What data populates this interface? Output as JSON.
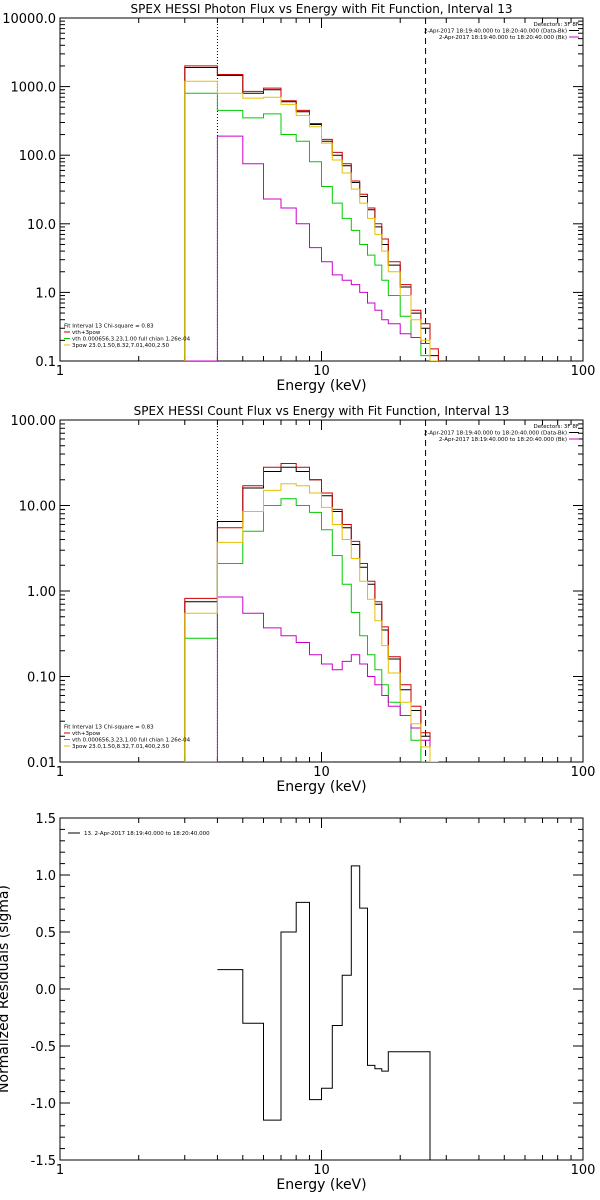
{
  "chart_data": [
    {
      "type": "line",
      "title": "SPEX HESSI Photon Flux vs Energy with Fit Function, Interval 13",
      "xlabel": "Energy (keV)",
      "ylabel": "",
      "xscale": "log",
      "yscale": "log",
      "xlim": [
        1,
        100
      ],
      "ylim": [
        0.1,
        10000
      ],
      "xticks": [
        {
          "v": 1,
          "label": "1"
        },
        {
          "v": 10,
          "label": "10"
        },
        {
          "v": 100,
          "label": "100"
        }
      ],
      "yticks": [
        {
          "v": 0.1,
          "label": "0.1"
        },
        {
          "v": 1,
          "label": "1.0"
        },
        {
          "v": 10,
          "label": "10.0"
        },
        {
          "v": 100,
          "label": "100.0"
        },
        {
          "v": 1000,
          "label": "1000.0"
        },
        {
          "v": 10000,
          "label": "10000.0"
        }
      ],
      "vlines": [
        {
          "x": 4.0,
          "style": "dotted",
          "color": "#000000"
        },
        {
          "x": 25.0,
          "style": "dashed",
          "color": "#000000"
        }
      ],
      "edges": [
        3.0,
        4.0,
        5.0,
        6.0,
        7.0,
        8.0,
        9.0,
        10.0,
        11.0,
        12.0,
        13.0,
        14.0,
        15.0,
        16.0,
        17.0,
        18.0,
        20.0,
        22.0,
        24.0,
        26.0,
        28.0
      ],
      "series": [
        {
          "name": "",
          "color": "#000000",
          "values": [
            1900,
            1450,
            800,
            900,
            600,
            430,
            280,
            160,
            100,
            70,
            40,
            25,
            16,
            9,
            5,
            2.5,
            1.2,
            0.5,
            0.3,
            0.12
          ]
        },
        {
          "name": "",
          "color": "#cc0000",
          "values": [
            2000,
            1500,
            850,
            950,
            620,
            450,
            290,
            170,
            110,
            75,
            42,
            27,
            17,
            10,
            6,
            2.8,
            1.3,
            0.55,
            0.35,
            0.15
          ]
        },
        {
          "name": "",
          "color": "#00cc00",
          "values": [
            800,
            450,
            350,
            400,
            200,
            160,
            80,
            35,
            20,
            12,
            8,
            5,
            3.5,
            2.5,
            1.5,
            0.9,
            0.45,
            0.22,
            0.12,
            0.05
          ]
        },
        {
          "name": "",
          "color": "#cc00cc",
          "values": [
            0.05,
            190,
            75,
            23,
            17,
            10,
            4.5,
            2.8,
            1.8,
            1.5,
            1.3,
            1.0,
            0.7,
            0.55,
            0.4,
            0.35,
            0.25,
            0.22,
            0.18,
            0.05
          ]
        },
        {
          "name": "",
          "color": "#e6c000",
          "values": [
            1200,
            800,
            680,
            700,
            550,
            380,
            260,
            150,
            85,
            55,
            32,
            20,
            12,
            7,
            4,
            2,
            0.9,
            0.4,
            0.2,
            0.08
          ]
        }
      ],
      "legend": {
        "placement": "top-right",
        "lines": [
          {
            "text": "Detectors: 3F 8F",
            "line": false,
            "color": "#000000"
          },
          {
            "text": "2-Apr-2017 18:19:40.000 to 18:20:40.000 (Data-Bk)",
            "line": true,
            "color": "#000000"
          },
          {
            "text": "2-Apr-2017 18:19:40.000 to 18:20:40.000 (Bk)",
            "line": true,
            "color": "#cc00cc"
          }
        ]
      },
      "fit_legend": {
        "placement": "bottom-left",
        "lines": [
          {
            "text": "Fit Interval 13   Chi-square = 0.83",
            "line": false,
            "color": "#000000"
          },
          {
            "text": "vth+3pow",
            "line": true,
            "color": "#cc0000"
          },
          {
            "text": "vth 0.000656,3.23,1.00  full chian 1.26e-04",
            "line": true,
            "color": "#00cc00"
          },
          {
            "text": "3pow 23.0,1.50,8.32,7.01,400,2.50",
            "line": true,
            "color": "#e6c000"
          }
        ]
      }
    },
    {
      "type": "line",
      "title": "SPEX HESSI Count Flux vs Energy with Fit Function, Interval 13",
      "xlabel": "Energy (keV)",
      "ylabel": "",
      "xscale": "log",
      "yscale": "log",
      "xlim": [
        1,
        100
      ],
      "ylim": [
        0.01,
        100
      ],
      "xticks": [
        {
          "v": 1,
          "label": "1"
        },
        {
          "v": 10,
          "label": "10"
        },
        {
          "v": 100,
          "label": "100"
        }
      ],
      "yticks": [
        {
          "v": 0.01,
          "label": "0.01"
        },
        {
          "v": 0.1,
          "label": "0.10"
        },
        {
          "v": 1,
          "label": "1.00"
        },
        {
          "v": 10,
          "label": "10.00"
        },
        {
          "v": 100,
          "label": "100.00"
        }
      ],
      "vlines": [
        {
          "x": 4.0,
          "style": "dotted",
          "color": "#000000"
        },
        {
          "x": 25.0,
          "style": "dashed",
          "color": "#000000"
        }
      ],
      "edges": [
        3.0,
        4.0,
        5.0,
        6.0,
        7.0,
        8.0,
        9.0,
        10.0,
        11.0,
        12.0,
        13.0,
        14.0,
        15.0,
        16.0,
        17.0,
        18.0,
        20.0,
        22.0,
        24.0,
        26.0,
        28.0
      ],
      "series": [
        {
          "name": "",
          "color": "#000000",
          "values": [
            0.75,
            6.5,
            16,
            25,
            28,
            25,
            20,
            13,
            8.5,
            5.5,
            3.5,
            1.9,
            1.2,
            0.7,
            0.35,
            0.16,
            0.07,
            0.04,
            0.02,
            0.005
          ]
        },
        {
          "name": "",
          "color": "#cc0000",
          "values": [
            0.82,
            5.5,
            17,
            28,
            31,
            28,
            20,
            14,
            9,
            6,
            3.8,
            2.1,
            1.3,
            0.75,
            0.38,
            0.17,
            0.08,
            0.045,
            0.022,
            0.006
          ]
        },
        {
          "name": "",
          "color": "#00cc00",
          "values": [
            0.28,
            2.1,
            5,
            10,
            12,
            10,
            8.3,
            5.2,
            2.6,
            1.2,
            0.56,
            0.3,
            0.18,
            0.12,
            0.08,
            0.05,
            0.035,
            0.018,
            0.01,
            0.004
          ]
        },
        {
          "name": "",
          "color": "#cc00cc",
          "values": [
            0.005,
            0.85,
            0.55,
            0.37,
            0.3,
            0.25,
            0.18,
            0.14,
            0.12,
            0.15,
            0.18,
            0.14,
            0.1,
            0.08,
            0.06,
            0.045,
            0.035,
            0.025,
            0.018,
            0.005
          ]
        },
        {
          "name": "",
          "color": "#e6c000",
          "values": [
            0.55,
            3.7,
            8.5,
            15,
            18,
            17,
            14,
            9.5,
            6,
            4,
            2.4,
            1.3,
            0.8,
            0.45,
            0.23,
            0.11,
            0.05,
            0.028,
            0.015,
            0.004
          ]
        }
      ],
      "legend": {
        "placement": "top-right",
        "lines": [
          {
            "text": "Detectors: 3F 8F",
            "line": false,
            "color": "#000000"
          },
          {
            "text": "2-Apr-2017 18:19:40.000 to 18:20:40.000 (Data-Bk)",
            "line": true,
            "color": "#000000"
          },
          {
            "text": "2-Apr-2017 18:19:40.000 to 18:20:40.000 (Bk)",
            "line": true,
            "color": "#cc00cc"
          }
        ]
      },
      "fit_legend": {
        "placement": "bottom-left",
        "lines": [
          {
            "text": "Fit Interval 13   Chi-square = 0.83",
            "line": false,
            "color": "#000000"
          },
          {
            "text": "vth+3pow",
            "line": true,
            "color": "#cc0000"
          },
          {
            "text": "vth 0.000656,3.23,1.00  full chian 1.26e-04",
            "line": true,
            "color": "#00cc00"
          },
          {
            "text": "3pow 23.0,1.50,8.32,7.01,400,2.50",
            "line": true,
            "color": "#e6c000"
          }
        ]
      }
    },
    {
      "type": "line",
      "title": "",
      "xlabel": "Energy (keV)",
      "ylabel": "Normalized Residuals (sigma)",
      "xscale": "log",
      "yscale": "linear",
      "xlim": [
        1,
        100
      ],
      "ylim": [
        -1.5,
        1.5
      ],
      "xticks": [
        {
          "v": 1,
          "label": "1"
        },
        {
          "v": 10,
          "label": "10"
        },
        {
          "v": 100,
          "label": "100"
        }
      ],
      "yticks": [
        {
          "v": -1.5,
          "label": "-1.5"
        },
        {
          "v": -1.0,
          "label": "-1.0"
        },
        {
          "v": -0.5,
          "label": "-0.5"
        },
        {
          "v": 0.0,
          "label": "0.0"
        },
        {
          "v": 0.5,
          "label": "0.5"
        },
        {
          "v": 1.0,
          "label": "1.0"
        },
        {
          "v": 1.5,
          "label": "1.5"
        }
      ],
      "vlines": [],
      "edges": [
        4.0,
        5.0,
        6.0,
        7.0,
        8.0,
        9.0,
        10.0,
        11.0,
        12.0,
        13.0,
        14.0,
        15.0,
        16.0,
        17.0,
        18.0,
        20.0,
        22.0,
        24.0,
        26.0
      ],
      "series": [
        {
          "name": "",
          "color": "#000000",
          "values": [
            0.17,
            -0.3,
            -1.15,
            0.5,
            0.76,
            -0.97,
            -0.87,
            -0.32,
            0.12,
            1.08,
            0.71,
            -0.67,
            -0.7,
            -0.72,
            -0.55,
            -0.55,
            -0.55,
            -0.55
          ]
        }
      ],
      "legend": {
        "placement": "top-left",
        "lines": [
          {
            "text": "13.  2-Apr-2017 18:19:40.000 to 18:20:40.000",
            "line": true,
            "color": "#000000"
          }
        ]
      }
    }
  ]
}
